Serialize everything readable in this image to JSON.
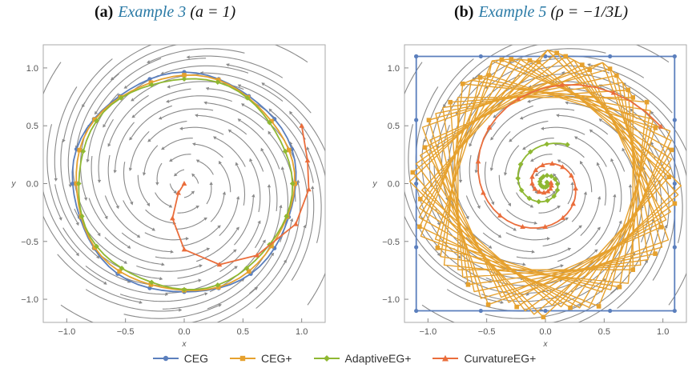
{
  "panels": [
    {
      "label": "(a)",
      "example": "Example 3",
      "param": "(a = 1)"
    },
    {
      "label": "(b)",
      "example": "Example 5",
      "param": "(ρ = −1/3L)"
    }
  ],
  "chart_data": [
    {
      "type": "line",
      "panel": "a",
      "xlabel": "x",
      "ylabel": "y",
      "xlim": [
        -1.2,
        1.2
      ],
      "ylim": [
        -1.2,
        1.2
      ],
      "xticks": [
        -1.0,
        -0.5,
        0.0,
        0.5,
        1.0
      ],
      "yticks": [
        -1.0,
        -0.5,
        0.0,
        0.5,
        1.0
      ],
      "xtick_labels": [
        "−1.0",
        "−0.5",
        "0.0",
        "0.5",
        "1.0"
      ],
      "ytick_labels": [
        "−1.0",
        "−0.5",
        "0.0",
        "0.5",
        "1.0"
      ],
      "background": "stream plot of a spiral vector field",
      "series": [
        {
          "name": "CEG",
          "color": "#5b7fbd",
          "marker": "circle",
          "shape": "near-circular orbit of radius ~0.95"
        },
        {
          "name": "CEG+",
          "color": "#e6a12e",
          "marker": "square",
          "shape": "near-circular orbit of radius ~0.93"
        },
        {
          "name": "AdaptiveEG+",
          "color": "#8fb832",
          "marker": "diamond",
          "shape": "near-circular orbit of radius ~0.91"
        },
        {
          "name": "CurvatureEG+",
          "color": "#ea6d3b",
          "marker": "triangle",
          "points": [
            [
              1.0,
              0.5
            ],
            [
              1.05,
              0.2
            ],
            [
              1.06,
              -0.05
            ],
            [
              0.95,
              -0.35
            ],
            [
              0.62,
              -0.62
            ],
            [
              0.3,
              -0.7
            ],
            [
              0.0,
              -0.57
            ],
            [
              -0.1,
              -0.3
            ],
            [
              -0.05,
              -0.08
            ],
            [
              0.0,
              0.0
            ]
          ]
        }
      ]
    },
    {
      "type": "line",
      "panel": "b",
      "xlabel": "x",
      "ylabel": "y",
      "xlim": [
        -1.2,
        1.2
      ],
      "ylim": [
        -1.2,
        1.2
      ],
      "xticks": [
        -1.0,
        -0.5,
        0.0,
        0.5,
        1.0
      ],
      "yticks": [
        -1.0,
        -0.5,
        0.0,
        0.5,
        1.0
      ],
      "xtick_labels": [
        "−1.0",
        "−0.5",
        "0.0",
        "0.5",
        "1.0"
      ],
      "ytick_labels": [
        "−1.0",
        "−0.5",
        "0.0",
        "0.5",
        "1.0"
      ],
      "background": "stream plot of a spiral vector field",
      "series": [
        {
          "name": "CEG",
          "color": "#5b7fbd",
          "marker": "circle",
          "shape": "square cycle with corners at (±1.1, ±1.1)"
        },
        {
          "name": "CEG+",
          "color": "#e6a12e",
          "marker": "square",
          "shape": "dense band of rotated square cycles between radius ~0.75 and ~1.1"
        },
        {
          "name": "AdaptiveEG+",
          "color": "#8fb832",
          "marker": "diamond",
          "shape": "spiral converging to origin"
        },
        {
          "name": "CurvatureEG+",
          "color": "#ea6d3b",
          "marker": "triangle",
          "shape": "spiral from (1.0, 0.5) converging to origin"
        }
      ]
    }
  ],
  "legend": [
    {
      "label": "CEG",
      "color": "#5b7fbd",
      "marker": "circle"
    },
    {
      "label": "CEG+",
      "color": "#e6a12e",
      "marker": "square"
    },
    {
      "label": "AdaptiveEG+",
      "color": "#8fb832",
      "marker": "diamond"
    },
    {
      "label": "CurvatureEG+",
      "color": "#ea6d3b",
      "marker": "triangle"
    }
  ]
}
